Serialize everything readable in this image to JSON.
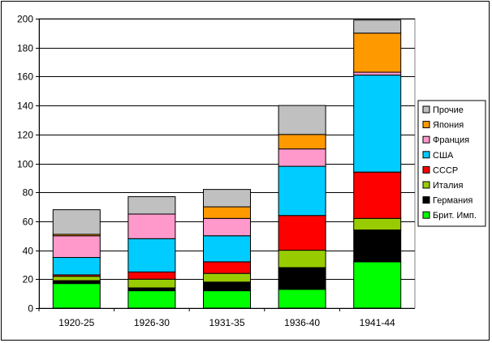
{
  "chart_data": {
    "type": "bar",
    "stacked": true,
    "categories": [
      "1920-25",
      "1926-30",
      "1931-35",
      "1936-40",
      "1941-44"
    ],
    "ylim": [
      0,
      200
    ],
    "yticks": [
      "0",
      "20",
      "40",
      "60",
      "80",
      "100",
      "120",
      "140",
      "160",
      "180",
      "200"
    ],
    "grid": "horizontal",
    "legend_position": "right",
    "series": [
      {
        "name": "Брит. Имп.",
        "color": "#00ff00",
        "values": [
          17,
          12,
          12,
          13,
          32
        ]
      },
      {
        "name": "Германия",
        "color": "#000000",
        "values": [
          2,
          2,
          6,
          15,
          22
        ]
      },
      {
        "name": "Италия",
        "color": "#99cc00",
        "values": [
          3,
          6,
          6,
          12,
          8
        ]
      },
      {
        "name": "СССР",
        "color": "#ff0000",
        "values": [
          1,
          5,
          8,
          24,
          32
        ]
      },
      {
        "name": "США",
        "color": "#00ccff",
        "values": [
          12,
          23,
          18,
          34,
          67
        ]
      },
      {
        "name": "Франция",
        "color": "#ff99cc",
        "values": [
          15,
          17,
          12,
          12,
          2
        ]
      },
      {
        "name": "Япония",
        "color": "#ff9900",
        "values": [
          1,
          0,
          8,
          10,
          27
        ]
      },
      {
        "name": "Прочие",
        "color": "#c0c0c0",
        "values": [
          17,
          12,
          12,
          20,
          9
        ]
      }
    ]
  }
}
